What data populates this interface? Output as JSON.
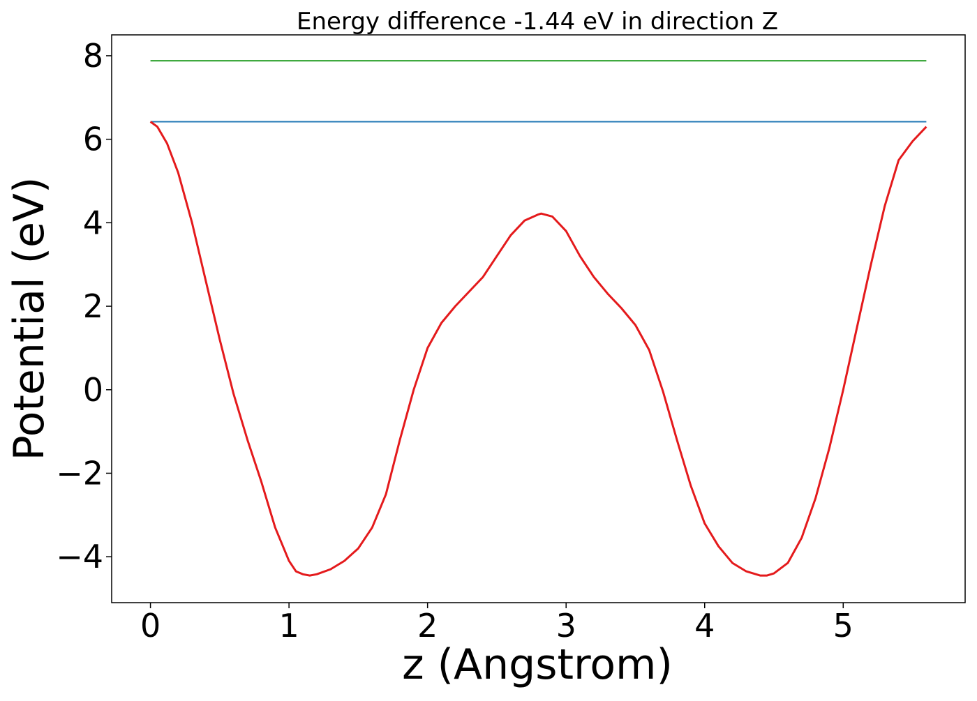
{
  "chart_data": {
    "type": "line",
    "title": "Energy difference -1.44 eV in direction Z",
    "xlabel": "z (Angstrom)",
    "ylabel": "Potential (eV)",
    "xlim": [
      -0.28,
      5.88
    ],
    "ylim": [
      -5.1,
      8.5
    ],
    "xticks": [
      {
        "value": 0,
        "label": "0"
      },
      {
        "value": 1,
        "label": "1"
      },
      {
        "value": 2,
        "label": "2"
      },
      {
        "value": 3,
        "label": "3"
      },
      {
        "value": 4,
        "label": "4"
      },
      {
        "value": 5,
        "label": "5"
      }
    ],
    "yticks": [
      {
        "value": -4,
        "label": "−4"
      },
      {
        "value": -2,
        "label": "−2"
      },
      {
        "value": 0,
        "label": "0"
      },
      {
        "value": 2,
        "label": "2"
      },
      {
        "value": 4,
        "label": "4"
      },
      {
        "value": 6,
        "label": "6"
      },
      {
        "value": 8,
        "label": "8"
      }
    ],
    "grid": false,
    "legend": "none",
    "series": [
      {
        "color": "#2ca02c",
        "x": [
          0.0,
          5.6
        ],
        "y": [
          7.88,
          7.88
        ]
      },
      {
        "color": "#1f77b4",
        "x": [
          0.0,
          5.6
        ],
        "y": [
          6.42,
          6.42
        ]
      },
      {
        "color": "#e41a1c",
        "x": [
          0.0,
          0.05,
          0.12,
          0.2,
          0.3,
          0.4,
          0.5,
          0.6,
          0.7,
          0.8,
          0.9,
          1.0,
          1.05,
          1.1,
          1.15,
          1.2,
          1.3,
          1.4,
          1.5,
          1.6,
          1.7,
          1.8,
          1.9,
          2.0,
          2.1,
          2.2,
          2.3,
          2.4,
          2.5,
          2.6,
          2.7,
          2.8,
          2.82,
          2.9,
          3.0,
          3.1,
          3.2,
          3.3,
          3.4,
          3.5,
          3.6,
          3.7,
          3.8,
          3.9,
          4.0,
          4.1,
          4.2,
          4.3,
          4.4,
          4.45,
          4.5,
          4.6,
          4.7,
          4.8,
          4.9,
          5.0,
          5.1,
          5.2,
          5.3,
          5.4,
          5.5,
          5.6
        ],
        "y": [
          6.42,
          6.3,
          5.9,
          5.2,
          4.0,
          2.6,
          1.2,
          -0.1,
          -1.2,
          -2.2,
          -3.3,
          -4.1,
          -4.35,
          -4.42,
          -4.45,
          -4.42,
          -4.3,
          -4.1,
          -3.8,
          -3.3,
          -2.5,
          -1.2,
          0.0,
          1.0,
          1.6,
          2.0,
          2.35,
          2.7,
          3.2,
          3.7,
          4.05,
          4.2,
          4.22,
          4.15,
          3.8,
          3.2,
          2.7,
          2.3,
          1.95,
          1.55,
          0.95,
          -0.05,
          -1.2,
          -2.3,
          -3.2,
          -3.75,
          -4.15,
          -4.35,
          -4.45,
          -4.45,
          -4.4,
          -4.15,
          -3.55,
          -2.6,
          -1.4,
          0.0,
          1.5,
          3.0,
          4.4,
          5.5,
          5.95,
          6.3
        ]
      }
    ]
  }
}
